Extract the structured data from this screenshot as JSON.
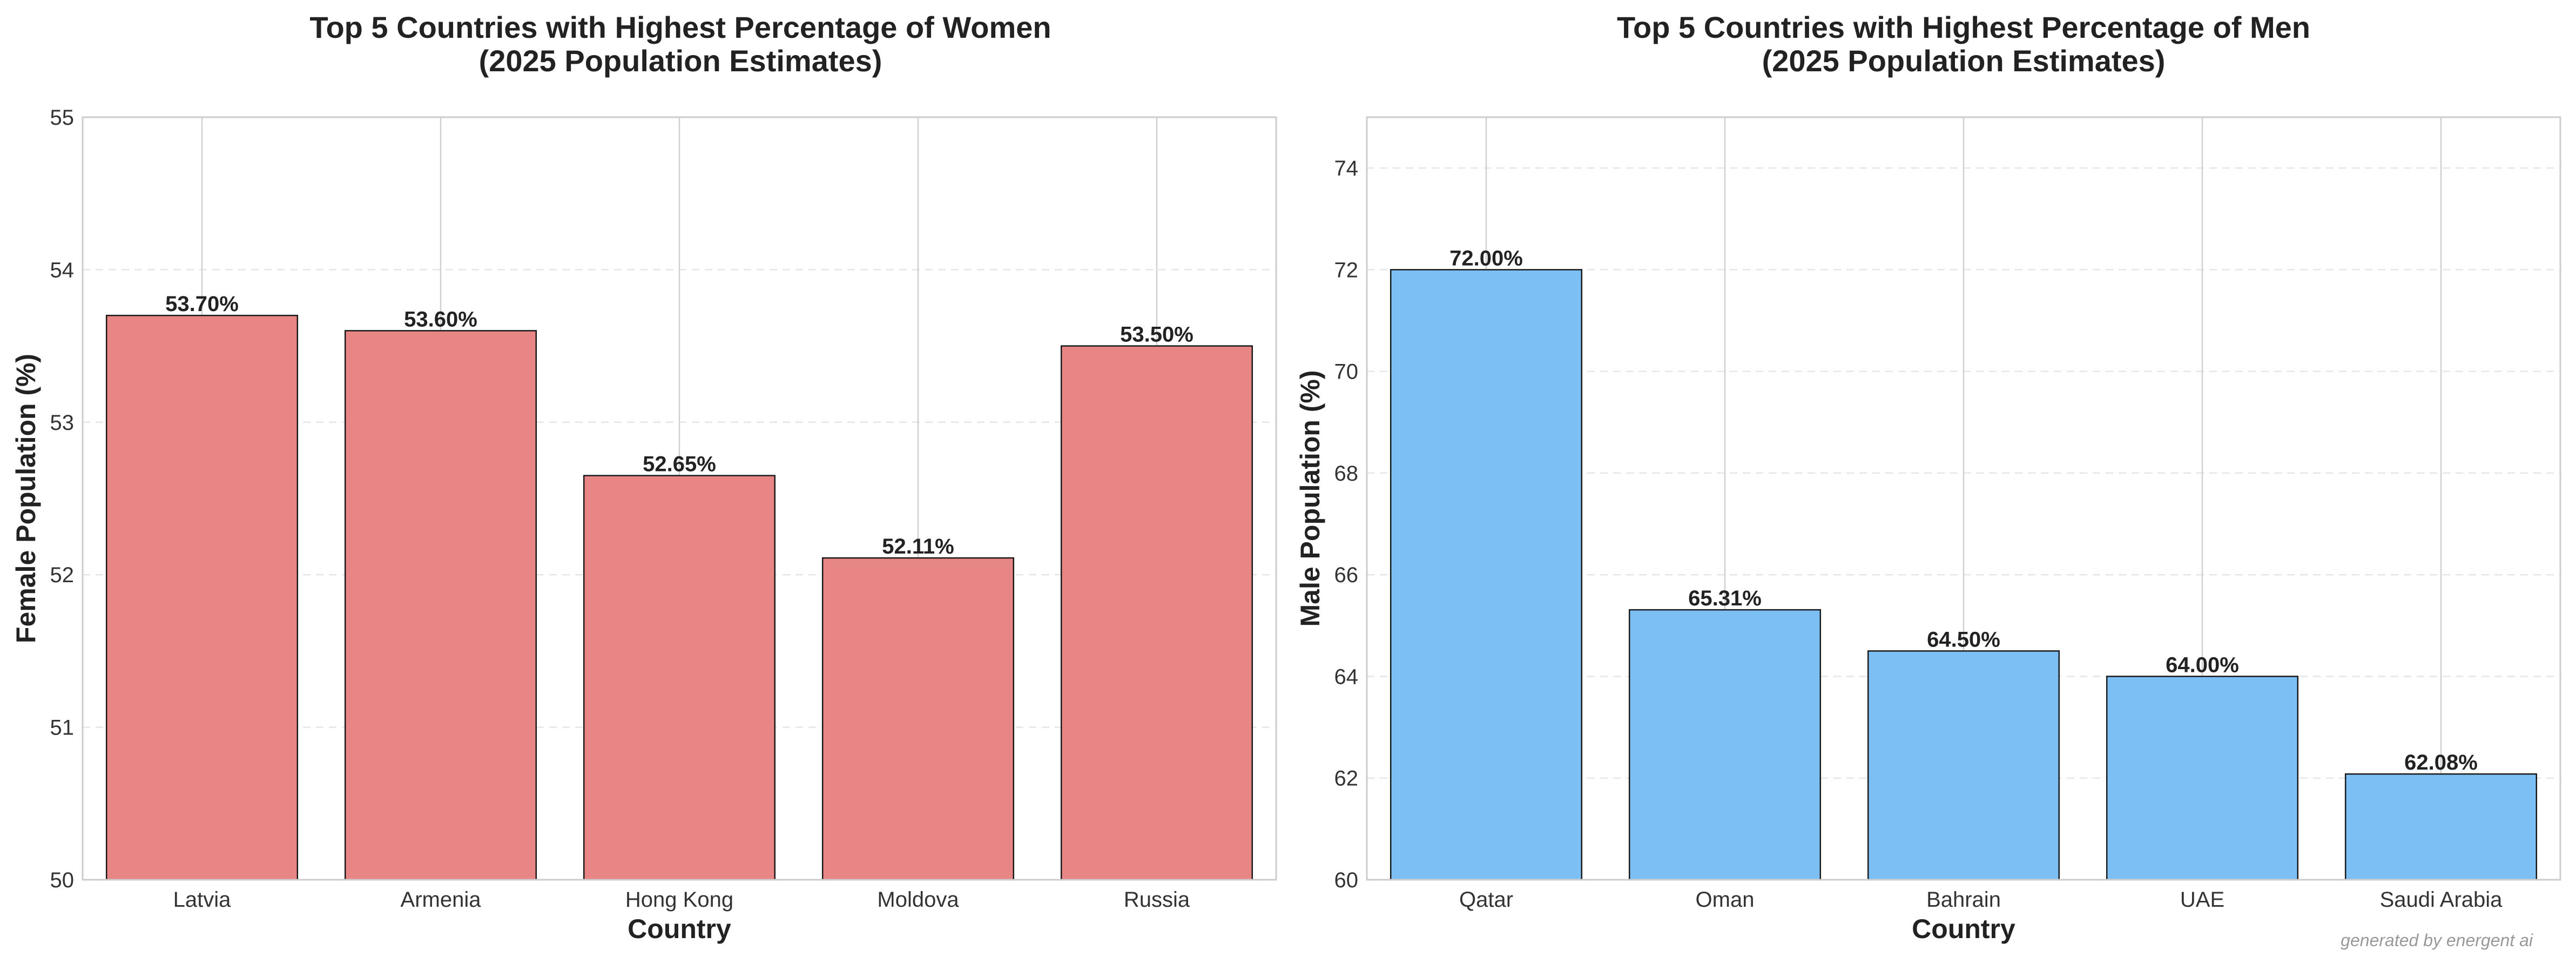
{
  "chart_data": [
    {
      "type": "bar",
      "title_line1": "Top 5 Countries with Highest Percentage of Women",
      "title_line2": "(2025 Population Estimates)",
      "xlabel": "Country",
      "ylabel": "Female Population (%)",
      "categories": [
        "Latvia",
        "Armenia",
        "Hong Kong",
        "Moldova",
        "Russia"
      ],
      "values": [
        53.7,
        53.6,
        52.65,
        52.11,
        53.5
      ],
      "value_labels": [
        "53.70%",
        "53.60%",
        "52.65%",
        "52.11%",
        "53.50%"
      ],
      "ylim": [
        50,
        55
      ],
      "yticks": [
        50,
        51,
        52,
        53,
        54,
        55
      ],
      "bar_color": "#e88585",
      "grid": true
    },
    {
      "type": "bar",
      "title_line1": "Top 5 Countries with Highest Percentage of Men",
      "title_line2": "(2025 Population Estimates)",
      "xlabel": "Country",
      "ylabel": "Male Population (%)",
      "categories": [
        "Qatar",
        "Oman",
        "Bahrain",
        "UAE",
        "Saudi Arabia"
      ],
      "values": [
        72.0,
        65.31,
        64.5,
        64.0,
        62.08
      ],
      "value_labels": [
        "72.00%",
        "65.31%",
        "64.50%",
        "64.00%",
        "62.08%"
      ],
      "ylim": [
        60,
        75
      ],
      "yticks": [
        60,
        62,
        64,
        66,
        68,
        70,
        72,
        74
      ],
      "bar_color": "#7bbff5",
      "grid": true
    }
  ],
  "watermark": "generated by energent ai"
}
